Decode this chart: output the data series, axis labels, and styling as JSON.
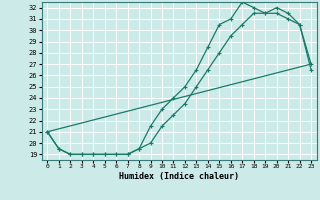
{
  "xlabel": "Humidex (Indice chaleur)",
  "xlim": [
    -0.5,
    23.5
  ],
  "ylim": [
    18.5,
    32.5
  ],
  "xticks": [
    0,
    1,
    2,
    3,
    4,
    5,
    6,
    7,
    8,
    9,
    10,
    11,
    12,
    13,
    14,
    15,
    16,
    17,
    18,
    19,
    20,
    21,
    22,
    23
  ],
  "yticks": [
    19,
    20,
    21,
    22,
    23,
    24,
    25,
    26,
    27,
    28,
    29,
    30,
    31,
    32
  ],
  "bg_color": "#cceae7",
  "grid_color": "#ffffff",
  "line_color": "#1a7a6a",
  "line1_x": [
    0,
    1,
    2,
    3,
    4,
    5,
    6,
    7,
    8,
    9,
    10,
    11,
    12,
    13,
    14,
    15,
    16,
    17,
    18,
    19,
    20,
    21,
    22,
    23
  ],
  "line1_y": [
    21.0,
    19.5,
    19.0,
    19.0,
    19.0,
    19.0,
    19.0,
    19.0,
    19.5,
    21.5,
    23.0,
    24.0,
    25.0,
    26.5,
    28.5,
    30.5,
    31.0,
    32.5,
    32.0,
    31.5,
    32.0,
    31.5,
    30.5,
    26.5
  ],
  "line2_x": [
    0,
    1,
    2,
    3,
    4,
    5,
    6,
    7,
    8,
    9,
    10,
    11,
    12,
    13,
    14,
    15,
    16,
    17,
    18,
    19,
    20,
    21,
    22,
    23
  ],
  "line2_y": [
    21.0,
    19.5,
    19.0,
    19.0,
    19.0,
    19.0,
    19.0,
    19.0,
    19.5,
    20.0,
    21.5,
    22.5,
    23.5,
    25.0,
    26.5,
    28.0,
    29.5,
    30.5,
    31.5,
    31.5,
    31.5,
    31.0,
    30.5,
    27.0
  ],
  "line3_x": [
    0,
    23
  ],
  "line3_y": [
    21.0,
    27.0
  ]
}
